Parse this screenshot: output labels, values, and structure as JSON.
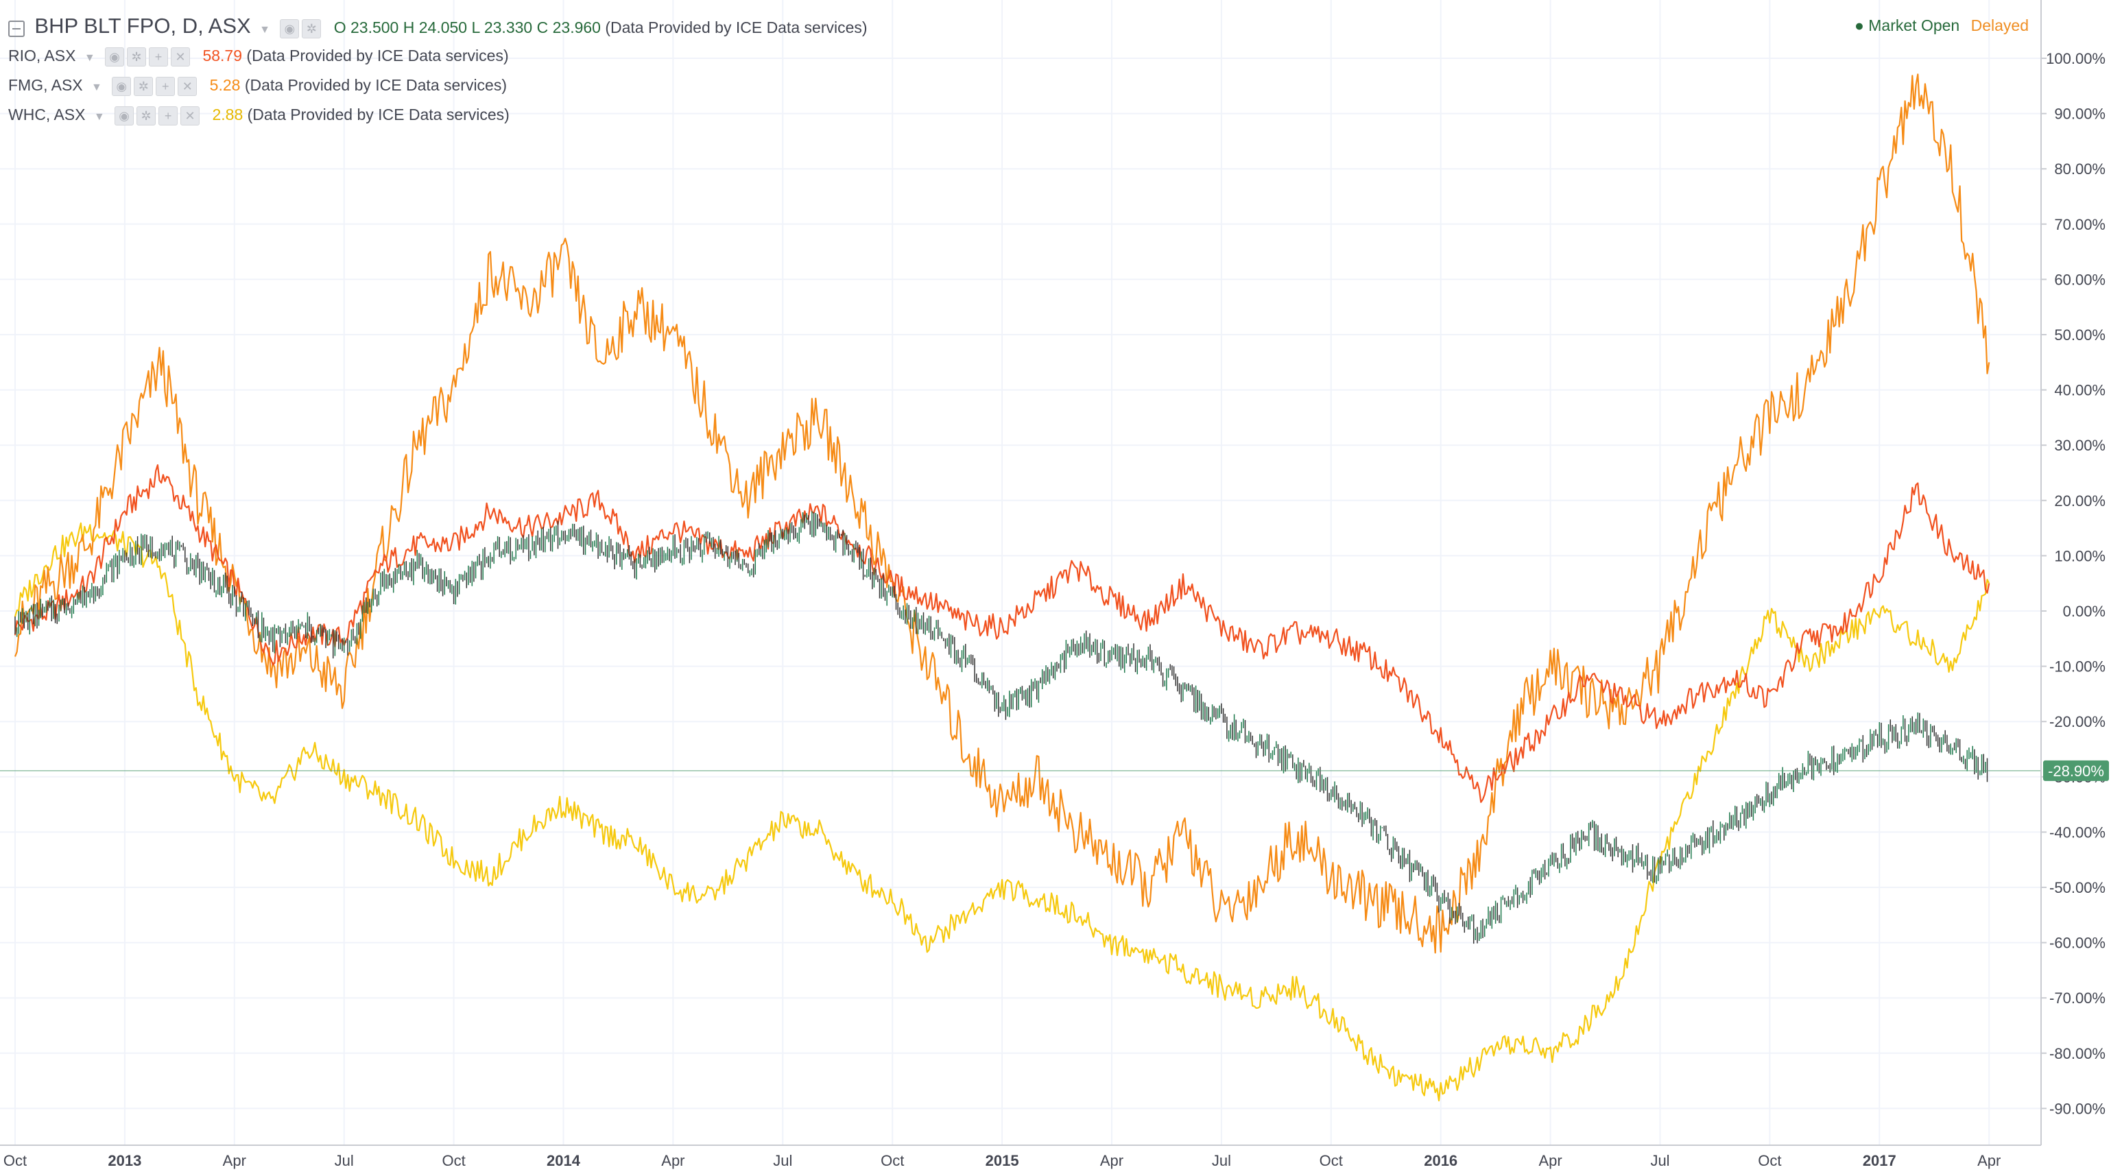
{
  "header": {
    "main_symbol": "BHP BLT FPO, D, ASX",
    "ohlc": {
      "o_label": "O",
      "o": "23.500",
      "h_label": "H",
      "h": "24.050",
      "l_label": "L",
      "l": "23.330",
      "c_label": "C",
      "c": "23.960"
    },
    "provider": "(Data Provided by ICE Data services)",
    "market_status": "Market Open",
    "delay_status": "Delayed"
  },
  "comparisons": [
    {
      "symbol": "RIO, ASX",
      "value": "58.79",
      "provider": "(Data Provided by ICE Data services)",
      "color": "#f1511f"
    },
    {
      "symbol": "FMG, ASX",
      "value": "5.28",
      "provider": "(Data Provided by ICE Data services)",
      "color": "#f68b15"
    },
    {
      "symbol": "WHC, ASX",
      "value": "2.88",
      "provider": "(Data Provided by ICE Data services)",
      "color": "#f6c90e"
    }
  ],
  "colors": {
    "bhp_up": "#1f7a4d",
    "bhp_down": "#333333",
    "rio": "#f1511f",
    "fmg": "#f68b15",
    "whc": "#f6c90e",
    "grid": "#f0f3fa",
    "last_price_badge": "#4d9a6e"
  },
  "icons": [
    "collapse-icon",
    "eye-icon",
    "gear-icon",
    "plus-icon",
    "close-icon",
    "caret-down-icon",
    "market-open-dot-icon"
  ],
  "chart_data": {
    "type": "line",
    "y_scale": "percent",
    "ylim": [
      -95,
      102
    ],
    "yticks": [
      "100.00%",
      "90.00%",
      "80.00%",
      "70.00%",
      "60.00%",
      "50.00%",
      "40.00%",
      "30.00%",
      "20.00%",
      "10.00%",
      "0.00%",
      "-10.00%",
      "-20.00%",
      "-30.00%",
      "-40.00%",
      "-50.00%",
      "-60.00%",
      "-70.00%",
      "-80.00%",
      "-90.00%"
    ],
    "xticks": [
      "Oct",
      "2013",
      "Apr",
      "Jul",
      "Oct",
      "2014",
      "Apr",
      "Jul",
      "Oct",
      "2015",
      "Apr",
      "Jul",
      "Oct",
      "2016",
      "Apr",
      "Jul",
      "Oct",
      "2017",
      "Apr"
    ],
    "xlim": [
      "2012-10",
      "2017-04"
    ],
    "last_value_label": "-28.90%",
    "last_value": -28.9,
    "x": [
      "2012-10",
      "2012-11",
      "2012-12",
      "2013-01",
      "2013-02",
      "2013-03",
      "2013-04",
      "2013-05",
      "2013-06",
      "2013-07",
      "2013-08",
      "2013-09",
      "2013-10",
      "2013-11",
      "2013-12",
      "2014-01",
      "2014-02",
      "2014-03",
      "2014-04",
      "2014-05",
      "2014-06",
      "2014-07",
      "2014-08",
      "2014-09",
      "2014-10",
      "2014-11",
      "2014-12",
      "2015-01",
      "2015-02",
      "2015-03",
      "2015-04",
      "2015-05",
      "2015-06",
      "2015-07",
      "2015-08",
      "2015-09",
      "2015-10",
      "2015-11",
      "2015-12",
      "2016-01",
      "2016-02",
      "2016-03",
      "2016-04",
      "2016-05",
      "2016-06",
      "2016-07",
      "2016-08",
      "2016-09",
      "2016-10",
      "2016-11",
      "2016-12",
      "2017-01",
      "2017-02",
      "2017-03",
      "2017-04"
    ],
    "series": [
      {
        "name": "BHP BLT FPO, D, ASX",
        "style": "candles",
        "values": [
          -2,
          0,
          3,
          10,
          12,
          8,
          2,
          -5,
          -3,
          -7,
          5,
          8,
          4,
          10,
          12,
          14,
          12,
          8,
          11,
          12,
          8,
          14,
          16,
          10,
          2,
          -3,
          -9,
          -18,
          -14,
          -6,
          -8,
          -9,
          -15,
          -20,
          -24,
          -28,
          -32,
          -38,
          -45,
          -52,
          -58,
          -52,
          -46,
          -40,
          -44,
          -47,
          -42,
          -38,
          -33,
          -28,
          -27,
          -23,
          -21,
          -25,
          -29
        ]
      },
      {
        "name": "RIO, ASX",
        "values": [
          -3,
          0,
          5,
          18,
          25,
          15,
          5,
          -8,
          -4,
          -5,
          8,
          12,
          12,
          18,
          15,
          17,
          20,
          10,
          15,
          12,
          10,
          15,
          18,
          12,
          5,
          2,
          -2,
          -3,
          2,
          8,
          2,
          -2,
          5,
          -3,
          -7,
          -4,
          -5,
          -8,
          -14,
          -22,
          -33,
          -27,
          -20,
          -12,
          -16,
          -20,
          -15,
          -12,
          -16,
          -5,
          -3,
          7,
          22,
          10,
          5
        ]
      },
      {
        "name": "FMG, ASX",
        "values": [
          -4,
          5,
          12,
          30,
          45,
          20,
          5,
          -10,
          -8,
          -15,
          10,
          30,
          40,
          62,
          55,
          64,
          45,
          55,
          50,
          35,
          20,
          30,
          35,
          20,
          5,
          -10,
          -25,
          -35,
          -30,
          -40,
          -45,
          -50,
          -40,
          -55,
          -50,
          -40,
          -48,
          -52,
          -55,
          -58,
          -45,
          -20,
          -10,
          -15,
          -18,
          -10,
          10,
          25,
          35,
          40,
          55,
          75,
          95,
          80,
          45
        ]
      },
      {
        "name": "WHC, ASX",
        "values": [
          0,
          10,
          15,
          12,
          8,
          -15,
          -30,
          -35,
          -25,
          -30,
          -33,
          -38,
          -45,
          -48,
          -40,
          -35,
          -40,
          -42,
          -50,
          -52,
          -45,
          -38,
          -40,
          -48,
          -52,
          -60,
          -55,
          -50,
          -52,
          -55,
          -60,
          -62,
          -65,
          -68,
          -70,
          -68,
          -73,
          -80,
          -85,
          -87,
          -82,
          -78,
          -80,
          -75,
          -65,
          -45,
          -30,
          -15,
          0,
          -10,
          -5,
          0,
          -5,
          -10,
          5
        ]
      }
    ]
  }
}
